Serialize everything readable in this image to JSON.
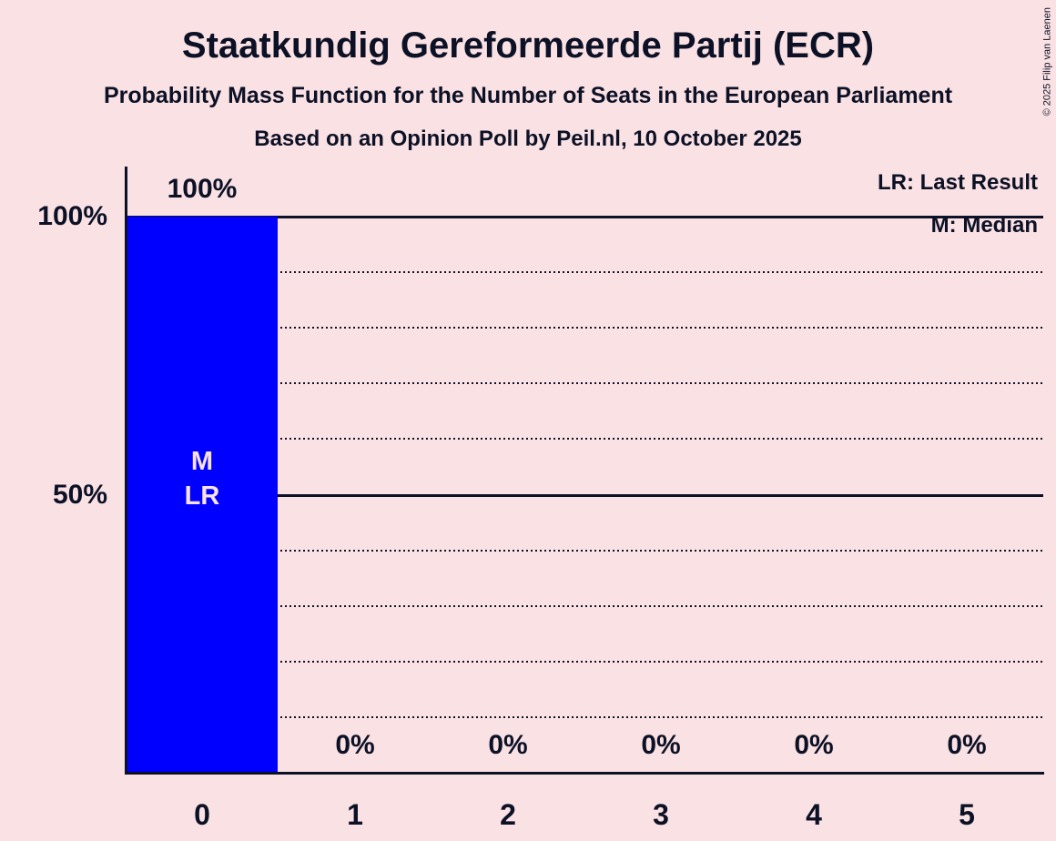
{
  "title": "Staatkundig Gereformeerde Partij (ECR)",
  "subtitle": "Probability Mass Function for the Number of Seats in the European Parliament",
  "poll_line": "Based on an Opinion Poll by Peil.nl, 10 October 2025",
  "copyright": "© 2025 Filip van Laenen",
  "legend": {
    "last_result": "LR: Last Result",
    "median": "M: Median"
  },
  "colors": {
    "background": "#fae2e4",
    "ink": "#0d1126",
    "bar": "#0000ff",
    "bar_annotation": "#fae2e4"
  },
  "chart_data": {
    "type": "bar",
    "title": "Staatkundig Gereformeerde Partij (ECR)",
    "subtitle": "Probability Mass Function for the Number of Seats in the European Parliament",
    "source": "Based on an Opinion Poll by Peil.nl, 10 October 2025",
    "categories": [
      "0",
      "1",
      "2",
      "3",
      "4",
      "5"
    ],
    "values": [
      100,
      0,
      0,
      0,
      0,
      0
    ],
    "value_labels": [
      "100%",
      "0%",
      "0%",
      "0%",
      "0%",
      "0%"
    ],
    "annotations": [
      [
        "M",
        "LR"
      ],
      [],
      [],
      [],
      [],
      []
    ],
    "xlabel": "",
    "ylabel": "",
    "ylim": [
      0,
      100
    ],
    "y_ticks": [
      {
        "value": 100,
        "label": "100%"
      },
      {
        "value": 50,
        "label": "50%"
      }
    ],
    "solid_gridlines": [
      100,
      50
    ],
    "dotted_gridlines": [
      90,
      80,
      70,
      60,
      40,
      30,
      20,
      10
    ],
    "grid": true,
    "legend_position": "top-right",
    "legend_entries": [
      "LR: Last Result",
      "M: Median"
    ],
    "median": 0,
    "last_result": 0
  }
}
